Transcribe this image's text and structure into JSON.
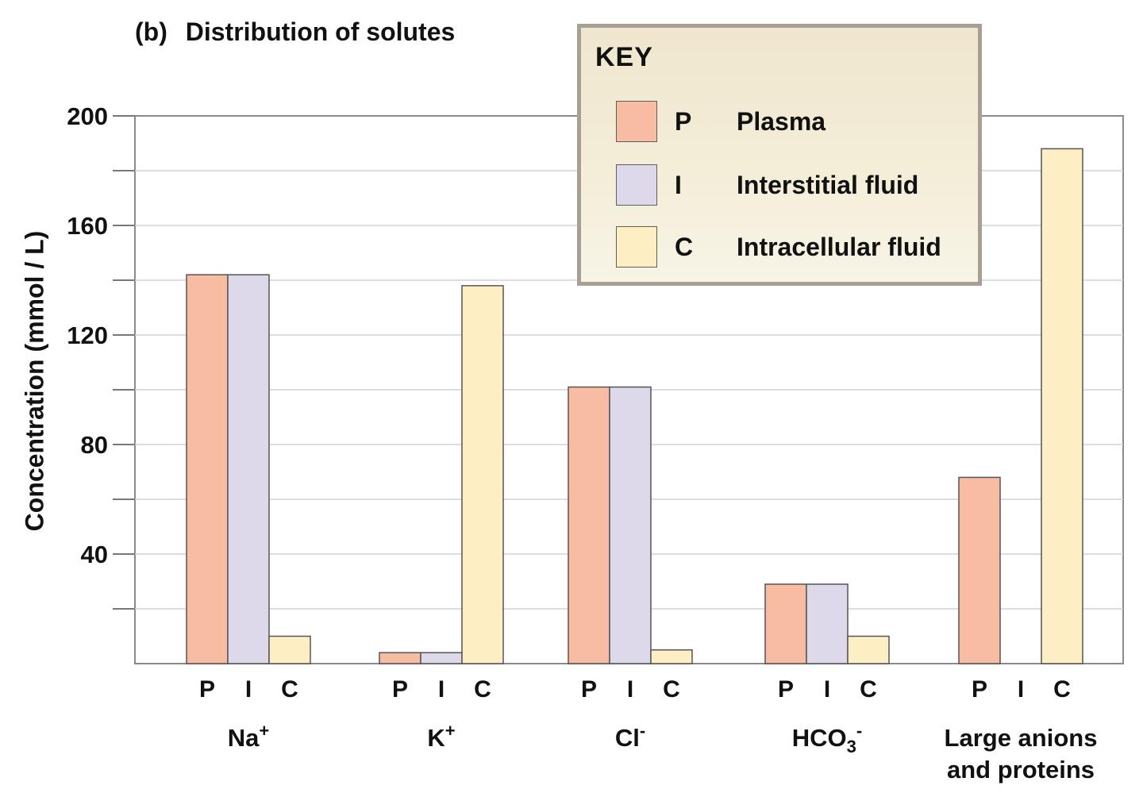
{
  "chart_data": {
    "type": "bar",
    "title_label": "(b)",
    "title": "Distribution of solutes",
    "xlabel": "",
    "ylabel": "Concentration (mmol / L)",
    "ylim": [
      0,
      200
    ],
    "yticks": [
      "40",
      "80",
      "120",
      "160",
      "200"
    ],
    "grid": true,
    "legend_position": "top-right",
    "legend_title": "KEY",
    "series": [
      {
        "code": "P",
        "name": "Plasma",
        "color": "#f7bca1",
        "values": [
          142,
          4,
          101,
          29,
          68
        ]
      },
      {
        "code": "I",
        "name": "Interstitial fluid",
        "color": "#ddd8ea",
        "values": [
          142,
          4,
          101,
          29,
          0
        ]
      },
      {
        "code": "C",
        "name": "Intracellular fluid",
        "color": "#fdefc3",
        "values": [
          10,
          138,
          5,
          10,
          188
        ]
      }
    ],
    "categories": [
      {
        "main": "Na",
        "sup": "+",
        "sub": "",
        "sup2": ""
      },
      {
        "main": "K",
        "sup": "+",
        "sub": "",
        "sup2": ""
      },
      {
        "main": "Cl",
        "sup": "-",
        "sub": "",
        "sup2": ""
      },
      {
        "main": "HCO",
        "sup": "",
        "sub": "3",
        "sup2": "-"
      },
      {
        "main": "Large anions",
        "line2": "and proteins",
        "sup": "",
        "sub": "",
        "sup2": ""
      }
    ]
  }
}
